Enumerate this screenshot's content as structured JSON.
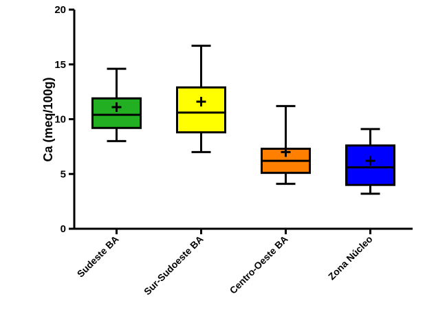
{
  "chart_data": {
    "type": "boxplot",
    "title": "",
    "xlabel": "",
    "ylabel": "Ca (meq/100g)",
    "ylim": [
      0,
      20
    ],
    "yticks": [
      "0",
      "5",
      "10",
      "15",
      "20"
    ],
    "grid": false,
    "legend": "none",
    "categories": [
      "Sudeste BA",
      "Sur-Sudoeste BA",
      "Centro-Oeste BA",
      "Zona Núcleo"
    ],
    "series": [
      {
        "category": "Sudeste BA",
        "min": 8.0,
        "q1": 9.2,
        "median": 10.4,
        "q3": 11.9,
        "max": 14.6,
        "mean": 11.1,
        "color": "#22b022"
      },
      {
        "category": "Sur-Sudoeste BA",
        "min": 7.0,
        "q1": 8.8,
        "median": 10.6,
        "q3": 12.9,
        "max": 16.7,
        "mean": 11.6,
        "color": "#ffff00"
      },
      {
        "category": "Centro-Oeste BA",
        "min": 4.1,
        "q1": 5.1,
        "median": 6.2,
        "q3": 7.3,
        "max": 11.2,
        "mean": 7.0,
        "color": "#ff8000"
      },
      {
        "category": "Zona Núcleo",
        "min": 3.2,
        "q1": 4.0,
        "median": 5.6,
        "q3": 7.6,
        "max": 9.1,
        "mean": 6.2,
        "color": "#0000ff"
      }
    ]
  }
}
